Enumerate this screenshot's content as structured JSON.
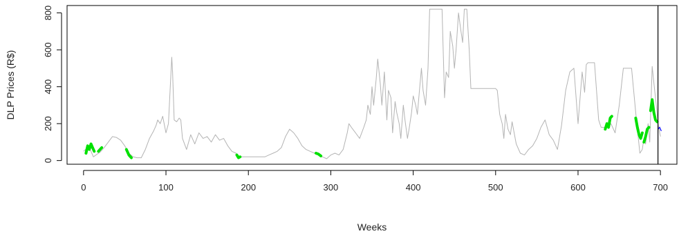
{
  "chart_data": {
    "type": "line",
    "xlabel": "Weeks",
    "ylabel": "DLP Prices (R$)",
    "xlim": [
      -20,
      720
    ],
    "ylim": [
      -20,
      840
    ],
    "x_ticks": [
      "0",
      "100",
      "200",
      "300",
      "400",
      "500",
      "600",
      "700"
    ],
    "y_ticks": [
      "0",
      "200",
      "400",
      "600",
      "800"
    ],
    "vertical_line_x": 697,
    "colors": {
      "price": "#b3b3b3",
      "highlight": "#00e000",
      "forecast": "#0000ff",
      "axis": "#000000"
    },
    "series": [
      {
        "role": "price",
        "x": [
          0,
          5,
          8,
          10,
          12,
          15,
          20,
          25,
          30,
          35,
          40,
          45,
          50,
          55,
          60,
          65,
          70,
          75,
          80,
          85,
          88,
          90,
          93,
          96,
          100,
          103,
          105,
          107,
          108,
          110,
          113,
          116,
          118,
          120,
          125,
          130,
          135,
          140,
          145,
          150,
          155,
          160,
          165,
          170,
          175,
          180,
          185,
          190,
          200,
          210,
          220,
          225,
          230,
          235,
          240,
          245,
          250,
          255,
          260,
          265,
          270,
          275,
          280,
          285,
          290,
          295,
          300,
          305,
          310,
          315,
          320,
          322,
          325,
          330,
          335,
          340,
          343,
          345,
          348,
          350,
          352,
          355,
          357,
          360,
          362,
          365,
          368,
          370,
          373,
          375,
          378,
          380,
          383,
          385,
          388,
          390,
          393,
          395,
          398,
          400,
          403,
          405,
          408,
          410,
          412,
          415,
          418,
          420,
          422,
          425,
          428,
          430,
          435,
          438,
          440,
          443,
          445,
          448,
          450,
          452,
          455,
          458,
          460,
          462,
          465,
          468,
          470,
          475,
          480,
          485,
          490,
          495,
          500,
          502,
          505,
          508,
          510,
          512,
          515,
          518,
          520,
          525,
          530,
          535,
          540,
          545,
          550,
          555,
          560,
          565,
          570,
          575,
          580,
          585,
          590,
          595,
          600,
          605,
          608,
          610,
          612,
          615,
          620,
          625,
          628,
          630,
          635,
          640,
          645,
          650,
          655,
          660,
          665,
          670,
          675,
          678,
          680,
          682,
          685,
          687,
          690,
          693,
          695,
          697,
          700
        ],
        "y": [
          50,
          70,
          60,
          40,
          20,
          30,
          45,
          70,
          100,
          130,
          125,
          110,
          80,
          40,
          20,
          15,
          15,
          60,
          120,
          160,
          190,
          220,
          200,
          240,
          150,
          200,
          380,
          560,
          480,
          220,
          210,
          230,
          220,
          120,
          60,
          140,
          90,
          150,
          120,
          130,
          100,
          140,
          110,
          120,
          80,
          50,
          40,
          20,
          20,
          20,
          20,
          30,
          40,
          50,
          70,
          130,
          170,
          150,
          120,
          80,
          60,
          50,
          40,
          30,
          20,
          10,
          30,
          40,
          30,
          60,
          150,
          200,
          180,
          150,
          120,
          180,
          220,
          300,
          250,
          400,
          300,
          440,
          550,
          420,
          300,
          480,
          220,
          380,
          340,
          150,
          320,
          260,
          200,
          120,
          300,
          220,
          120,
          170,
          260,
          350,
          300,
          250,
          400,
          500,
          380,
          300,
          500,
          820,
          820,
          820,
          820,
          820,
          820,
          340,
          480,
          450,
          700,
          620,
          500,
          600,
          800,
          700,
          640,
          820,
          820,
          600,
          390,
          390,
          390,
          390,
          390,
          390,
          390,
          380,
          250,
          200,
          120,
          250,
          170,
          140,
          210,
          90,
          40,
          30,
          60,
          80,
          120,
          180,
          220,
          140,
          110,
          60,
          190,
          380,
          480,
          500,
          200,
          480,
          370,
          520,
          530,
          530,
          530,
          220,
          180,
          180,
          180,
          200,
          150,
          300,
          500,
          500,
          500,
          260,
          40,
          60,
          120,
          90,
          200,
          100,
          510,
          380,
          300,
          200,
          130
        ]
      },
      {
        "role": "highlight",
        "segments": [
          {
            "x": [
              3,
              5,
              7,
              9,
              11,
              13
            ],
            "y": [
              40,
              80,
              60,
              90,
              70,
              50
            ]
          },
          {
            "x": [
              18,
              20,
              22
            ],
            "y": [
              50,
              60,
              70
            ]
          },
          {
            "x": [
              52,
              55,
              58
            ],
            "y": [
              60,
              30,
              15
            ]
          },
          {
            "x": [
              186,
              188,
              190
            ],
            "y": [
              30,
              15,
              20
            ]
          },
          {
            "x": [
              282,
              285,
              288
            ],
            "y": [
              40,
              35,
              25
            ]
          },
          {
            "x": [
              633,
              635,
              637,
              639,
              641
            ],
            "y": [
              170,
              200,
              180,
              230,
              240
            ]
          },
          {
            "x": [
              670,
              672,
              674,
              676,
              678
            ],
            "y": [
              230,
              180,
              140,
              120,
              150
            ]
          },
          {
            "x": [
              680,
              682,
              684,
              686
            ],
            "y": [
              100,
              130,
              170,
              180
            ]
          },
          {
            "x": [
              688,
              690,
              692,
              694,
              696
            ],
            "y": [
              270,
              330,
              260,
              220,
              210
            ]
          }
        ]
      },
      {
        "role": "forecast",
        "x": [
          697,
          699,
          701
        ],
        "y": [
          170,
          180,
          160
        ]
      }
    ]
  }
}
